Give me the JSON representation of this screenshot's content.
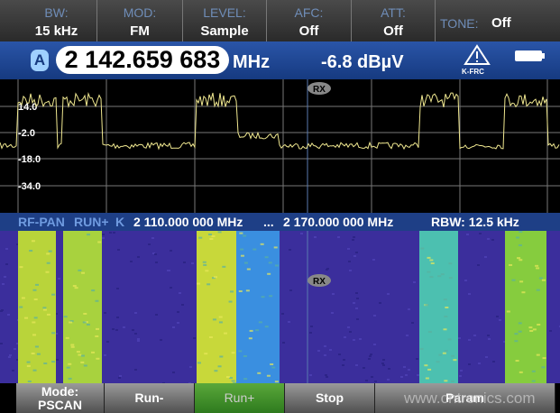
{
  "status_bar": [
    {
      "label": "BW:",
      "value": "15 kHz"
    },
    {
      "label": "MOD:",
      "value": "FM"
    },
    {
      "label": "LEVEL:",
      "value": "Sample"
    },
    {
      "label": "AFC:",
      "value": "Off"
    },
    {
      "label": "ATT:",
      "value": "Off"
    }
  ],
  "tone": {
    "label": "TONE:",
    "value": "Off"
  },
  "frequency_bar": {
    "channel": "A",
    "frequency": "2 142.659 683",
    "unit": "MHz",
    "level": "-6.8 dBµV",
    "icon_label": "K-FRC"
  },
  "spectrum": {
    "y_labels": [
      "14.0",
      "-2.0",
      "-18.0",
      "-34.0"
    ],
    "marker": "RX"
  },
  "pan_bar": {
    "mode": "RF-PAN",
    "run": "RUN+",
    "extra": "K",
    "start": "2 110.000 000 MHz",
    "separator": "...",
    "stop": "2 170.000 000 MHz",
    "rbw": "RBW: 12.5 kHz"
  },
  "waterfall": {
    "marker": "RX"
  },
  "softkeys": [
    {
      "lines": [
        "Mode:",
        "PSCAN"
      ]
    },
    {
      "lines": [
        "Run-"
      ]
    },
    {
      "lines": [
        "Run+"
      ]
    },
    {
      "lines": [
        "Stop"
      ]
    },
    {
      "lines": [
        "Param"
      ]
    }
  ],
  "watermark": "www.cntronics.com"
}
